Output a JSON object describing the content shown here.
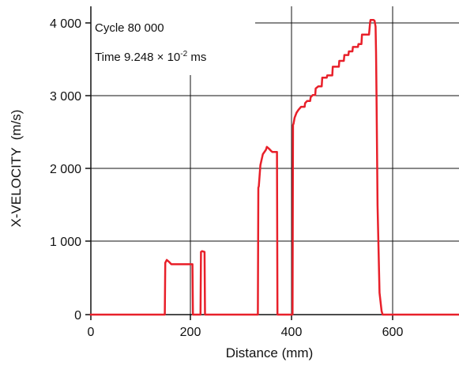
{
  "chart_data": {
    "type": "line",
    "xlabel": "Distance (mm)",
    "ylabel": "X-VELOCITY  (m/s)",
    "xlim": [
      -2,
      755
    ],
    "ylim": [
      0,
      4060
    ],
    "x_ticks": [
      0,
      200,
      400,
      600
    ],
    "x_tick_labels": [
      "0",
      "200",
      "400",
      "600"
    ],
    "y_ticks": [
      0,
      1000,
      2000,
      3000,
      4000
    ],
    "y_tick_labels": [
      "0",
      "1 000",
      "2 000",
      "3 000",
      "4 000"
    ],
    "grid": true,
    "annotations": {
      "cycle": "Cycle 80 000",
      "time_prefix": "Time 9.248 ",
      "time_times": "×",
      "time_base": " 10",
      "time_exp": "-2",
      "time_unit": " ms"
    },
    "series": [
      {
        "color": "#e8202a",
        "x": [
          -2,
          147,
          148,
          151,
          156,
          160,
          202,
          203,
          218,
          219,
          221,
          226,
          227,
          332,
          333,
          334,
          337,
          342,
          348,
          350,
          355,
          359,
          361,
          370,
          371,
          401,
          402,
          403,
          405,
          409,
          413,
          418,
          425,
          426,
          430,
          436,
          437,
          441,
          446,
          447,
          452,
          459,
          460,
          469,
          470,
          480,
          481,
          493,
          494,
          503,
          504,
          512,
          513,
          520,
          521,
          531,
          532,
          538,
          539,
          552,
          553,
          555,
          556,
          562,
          564,
          566,
          567,
          568,
          569,
          570,
          574,
          578,
          580,
          582,
          585,
          588,
          755
        ],
        "y": [
          0,
          0,
          710,
          750,
          720,
          690,
          690,
          0,
          0,
          860,
          870,
          860,
          0,
          0,
          1740,
          1760,
          2050,
          2200,
          2260,
          2300,
          2270,
          2240,
          2230,
          2230,
          0,
          0,
          2600,
          2620,
          2700,
          2770,
          2810,
          2850,
          2850,
          2900,
          2930,
          2930,
          2980,
          3010,
          3010,
          3100,
          3130,
          3130,
          3250,
          3250,
          3280,
          3280,
          3400,
          3400,
          3480,
          3480,
          3560,
          3560,
          3610,
          3610,
          3670,
          3670,
          3710,
          3710,
          3840,
          3840,
          3840,
          4000,
          4040,
          4040,
          4030,
          3950,
          3600,
          3000,
          2200,
          1500,
          300,
          50,
          0,
          0,
          0,
          0,
          0
        ]
      }
    ]
  }
}
